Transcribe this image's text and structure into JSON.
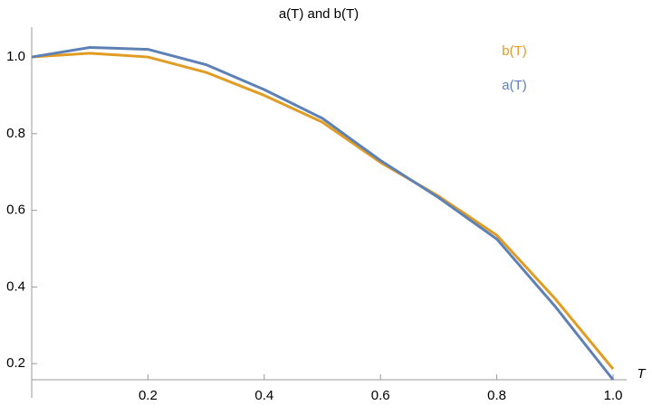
{
  "chart_data": {
    "type": "line",
    "title": "a(T) and b(T)",
    "x_label": "T",
    "x": [
      0,
      0.1,
      0.2,
      0.3,
      0.4,
      0.5,
      0.6,
      0.7,
      0.8,
      0.9,
      1.0
    ],
    "series": [
      {
        "name": "b(T)",
        "color": "#e19c24",
        "values": [
          1.0,
          1.01,
          1.0,
          0.96,
          0.9,
          0.83,
          0.725,
          0.637,
          0.535,
          0.37,
          0.186
        ]
      },
      {
        "name": "a(T)",
        "color": "#5e81b5",
        "values": [
          1.0,
          1.025,
          1.02,
          0.98,
          0.915,
          0.84,
          0.73,
          0.633,
          0.525,
          0.35,
          0.158
        ]
      }
    ],
    "xlim": [
      0,
      1.0
    ],
    "ylim": [
      0.158,
      1.078
    ],
    "xticks": [
      0.2,
      0.4,
      0.6,
      0.8,
      {
        "value": 1.0,
        "label": "1.0"
      }
    ],
    "yticks": [
      0.2,
      0.4,
      0.6,
      0.8,
      {
        "value": 1.0,
        "label": "1.0"
      }
    ],
    "legend": "top right"
  }
}
